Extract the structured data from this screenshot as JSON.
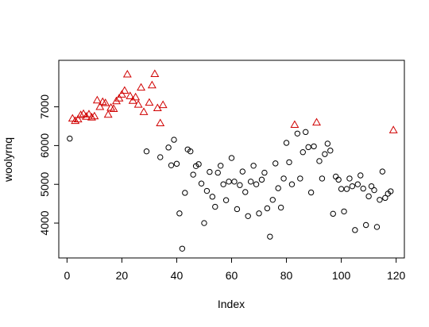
{
  "chart_data": {
    "type": "scatter",
    "xlabel": "Index",
    "ylabel": "woolyrnq",
    "xlim": [
      -3,
      123
    ],
    "ylim": [
      3100,
      8200
    ],
    "x_ticks": [
      0,
      20,
      40,
      60,
      80,
      100,
      120
    ],
    "y_ticks": [
      4000,
      5000,
      6000,
      7000
    ],
    "series": [
      {
        "marker": "circle",
        "color": "#000000",
        "x": [
          1,
          29,
          34,
          37,
          38,
          39,
          40,
          41,
          42,
          43,
          44,
          45,
          46,
          47,
          48,
          49,
          50,
          51,
          52,
          53,
          54,
          55,
          56,
          57,
          58,
          59,
          60,
          61,
          62,
          63,
          64,
          65,
          66,
          67,
          68,
          69,
          70,
          71,
          72,
          73,
          74,
          75,
          76,
          77,
          78,
          79,
          80,
          81,
          82,
          84,
          85,
          86,
          87,
          88,
          89,
          90,
          92,
          93,
          94,
          95,
          96,
          97,
          98,
          99,
          100,
          101,
          102,
          103,
          104,
          105,
          106,
          107,
          108,
          109,
          110,
          111,
          112,
          113,
          114,
          115,
          116,
          117,
          118
        ],
        "y": [
          6180,
          5850,
          5700,
          5950,
          5490,
          6150,
          5530,
          4250,
          3340,
          4780,
          5900,
          5850,
          5250,
          5470,
          5520,
          5020,
          4000,
          4830,
          5320,
          4680,
          4420,
          5300,
          5480,
          5000,
          4590,
          5070,
          5680,
          5070,
          4360,
          4980,
          5330,
          4800,
          4180,
          5070,
          5480,
          5000,
          4250,
          5120,
          5300,
          4380,
          3650,
          4600,
          5540,
          4900,
          4400,
          5150,
          6070,
          5570,
          5000,
          6310,
          5150,
          5830,
          6350,
          5960,
          4790,
          5980,
          5600,
          5150,
          5780,
          6050,
          5870,
          4240,
          5200,
          5120,
          4880,
          4300,
          4880,
          5150,
          4950,
          3820,
          5000,
          5230,
          4890,
          3950,
          4690,
          4950,
          4850,
          3900,
          4600,
          5330,
          4650,
          4760,
          4820
        ]
      },
      {
        "marker": "triangle",
        "color": "#d00000",
        "x": [
          2,
          3,
          4,
          5,
          6,
          7,
          8,
          9,
          10,
          11,
          12,
          13,
          14,
          15,
          16,
          17,
          18,
          19,
          20,
          21,
          22,
          23,
          24,
          25,
          26,
          27,
          28,
          30,
          31,
          32,
          33,
          34,
          35,
          83,
          91,
          119
        ],
        "y": [
          6700,
          6640,
          6680,
          6790,
          6820,
          6750,
          6810,
          6730,
          6760,
          7170,
          7000,
          7130,
          7100,
          6800,
          6980,
          6950,
          7150,
          7220,
          7320,
          7420,
          7840,
          7280,
          7160,
          7250,
          7060,
          7500,
          6870,
          7110,
          7560,
          7850,
          6970,
          6580,
          7050,
          6540,
          6600,
          6400
        ]
      }
    ]
  }
}
